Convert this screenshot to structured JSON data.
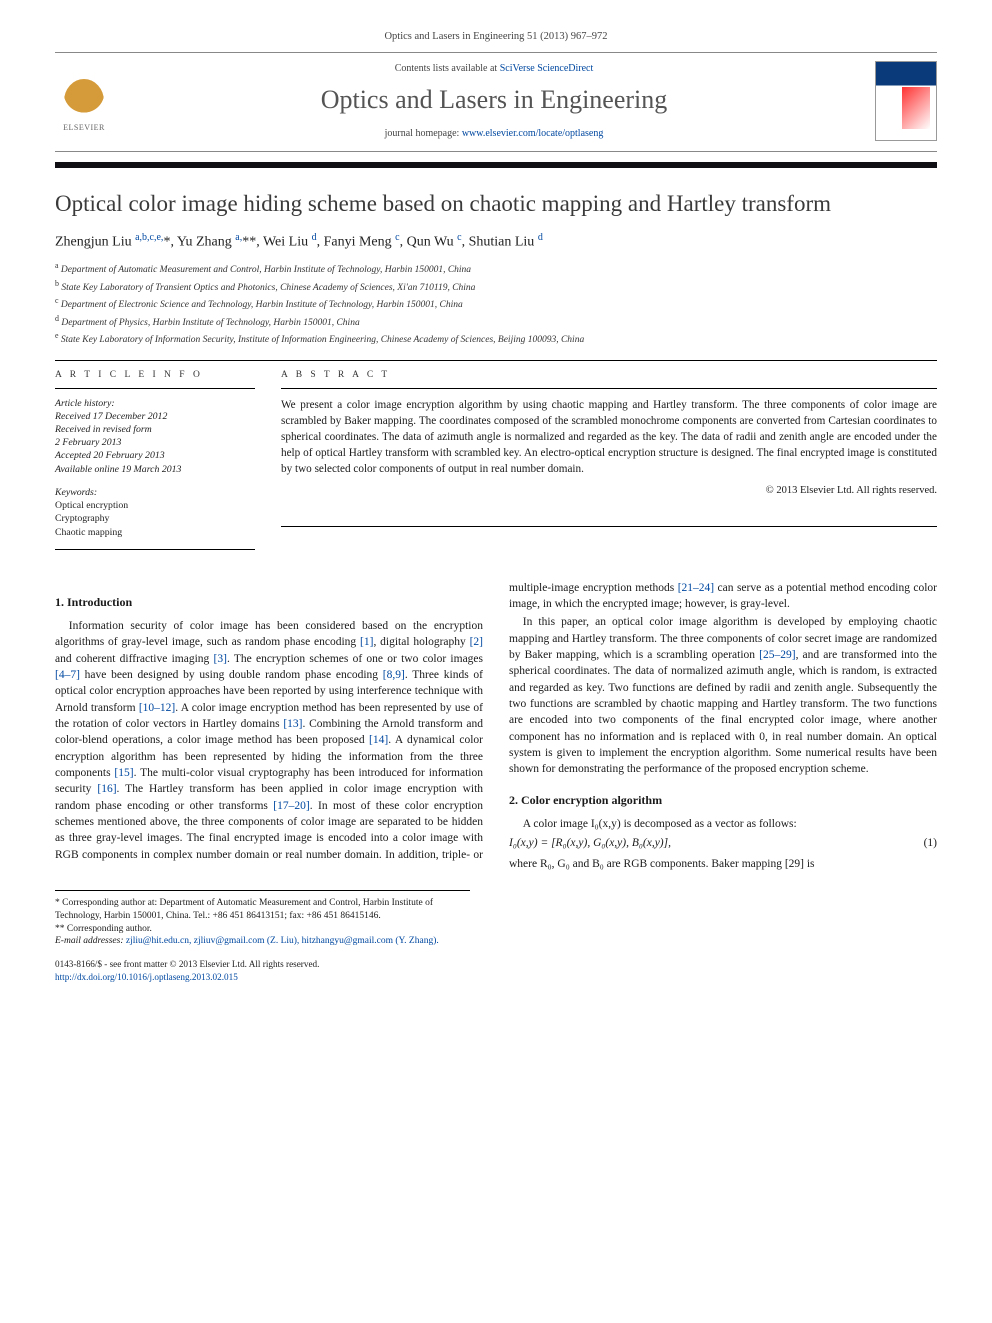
{
  "citation": "Optics and Lasers in Engineering 51 (2013) 967–972",
  "header": {
    "publisher": "ELSEVIER",
    "contents_prefix": "Contents lists available at ",
    "contents_link": "SciVerse ScienceDirect",
    "journal": "Optics and Lasers in Engineering",
    "homepage_prefix": "journal homepage: ",
    "homepage_url": "www.elsevier.com/locate/optlaseng"
  },
  "title": "Optical color image hiding scheme based on chaotic mapping and Hartley transform",
  "authors_html": "Zhengjun Liu <sup>a,b,c,e,</sup><span class='star'>*</span>, Yu Zhang <sup>a,</sup><span class='star'>**</span>, Wei Liu <sup>d</sup>, Fanyi Meng <sup>c</sup>, Qun Wu <sup>c</sup>, Shutian Liu <sup>d</sup>",
  "affiliations": [
    "a Department of Automatic Measurement and Control, Harbin Institute of Technology, Harbin 150001, China",
    "b State Key Laboratory of Transient Optics and Photonics, Chinese Academy of Sciences, Xi'an 710119, China",
    "c Department of Electronic Science and Technology, Harbin Institute of Technology, Harbin 150001, China",
    "d Department of Physics, Harbin Institute of Technology, Harbin 150001, China",
    "e State Key Laboratory of Information Security, Institute of Information Engineering, Chinese Academy of Sciences, Beijing 100093, China"
  ],
  "article_info": {
    "head": "A R T I C L E  I N F O",
    "history_label": "Article history:",
    "history": [
      "Received 17 December 2012",
      "Received in revised form",
      "2 February 2013",
      "Accepted 20 February 2013",
      "Available online 19 March 2013"
    ],
    "keywords_label": "Keywords:",
    "keywords": [
      "Optical encryption",
      "Cryptography",
      "Chaotic mapping"
    ]
  },
  "abstract": {
    "head": "A B S T R A C T",
    "text": "We present a color image encryption algorithm by using chaotic mapping and Hartley transform. The three components of color image are scrambled by Baker mapping. The coordinates composed of the scrambled monochrome components are converted from Cartesian coordinates to spherical coordinates. The data of azimuth angle is normalized and regarded as the key. The data of radii and zenith angle are encoded under the help of optical Hartley transform with scrambled key. An electro-optical encryption structure is designed. The final encrypted image is constituted by two selected color components of output in real number domain.",
    "copyright": "© 2013 Elsevier Ltd. All rights reserved."
  },
  "sections": {
    "intro_head": "1.  Introduction",
    "intro_p1": "Information security of color image has been considered based on the encryption algorithms of gray-level image, such as random phase encoding [1], digital holography [2] and coherent diffractive imaging [3]. The encryption schemes of one or two color images [4–7] have been designed by using double random phase encoding [8,9]. Three kinds of optical color encryption approaches have been reported by using interference technique with Arnold transform [10–12]. A color image encryption method has been represented by use of the rotation of color vectors in Hartley domains [13]. Combining the Arnold transform and color-blend operations, a color image method has been proposed [14]. A dynamical color encryption algorithm has been represented by hiding the information from the three components [15]. The multi-color visual cryptography has been introduced for information security [16]. The Hartley transform has been applied in color image encryption with random phase encoding or other transforms [17–20]. In most of these color encryption schemes mentioned above, the three components of color image are separated to be hidden as three gray-level images. The final encrypted image is encoded into a color image with RGB components in complex number domain or real number domain. In addition, triple- or multiple-image encryption methods [21–24] can serve as a potential method encoding color image, in which the encrypted image; however, is gray-level.",
    "intro_p2": "In this paper, an optical color image algorithm is developed by employing chaotic mapping and Hartley transform. The three components of color secret image are randomized by Baker mapping, which is a scrambling operation [25–29], and are transformed into the spherical coordinates. The data of normalized azimuth angle, which is random, is extracted and regarded as key. Two functions are defined by radii and zenith angle. Subsequently the two functions are scrambled by chaotic mapping and Hartley transform. The two functions are encoded into two components of the final encrypted color image, where another component has no information and is replaced with 0, in real number domain. An optical system is given to implement the encryption algorithm. Some numerical results have been shown for demonstrating the performance of the proposed encryption scheme.",
    "algo_head": "2.  Color encryption algorithm",
    "algo_p1": "A color image I₀(x,y) is decomposed as a vector as follows:",
    "eq1": "I₀(x,y) = [R₀(x,y), G₀(x,y), B₀(x,y)],",
    "eq1_num": "(1)",
    "algo_p2": "where R₀, G₀ and B₀ are RGB components. Baker mapping [29] is"
  },
  "footnotes": {
    "corr1": "* Corresponding author at: Department of Automatic Measurement and Control, Harbin Institute of Technology, Harbin 150001, China. Tel.: +86 451 86413151; fax: +86 451 86415146.",
    "corr2": "** Corresponding author.",
    "email_label": "E-mail addresses: ",
    "emails": "zjliu@hit.edu.cn, zjliuv@gmail.com (Z. Liu), hitzhangyu@gmail.com (Y. Zhang)."
  },
  "footer": {
    "issn": "0143-8166/$ - see front matter © 2013 Elsevier Ltd. All rights reserved.",
    "doi": "http://dx.doi.org/10.1016/j.optlaseng.2013.02.015"
  },
  "colors": {
    "link": "#0048a0",
    "rule": "#0f0f14",
    "text": "#1a1a1a",
    "header_gray": "#545454"
  }
}
